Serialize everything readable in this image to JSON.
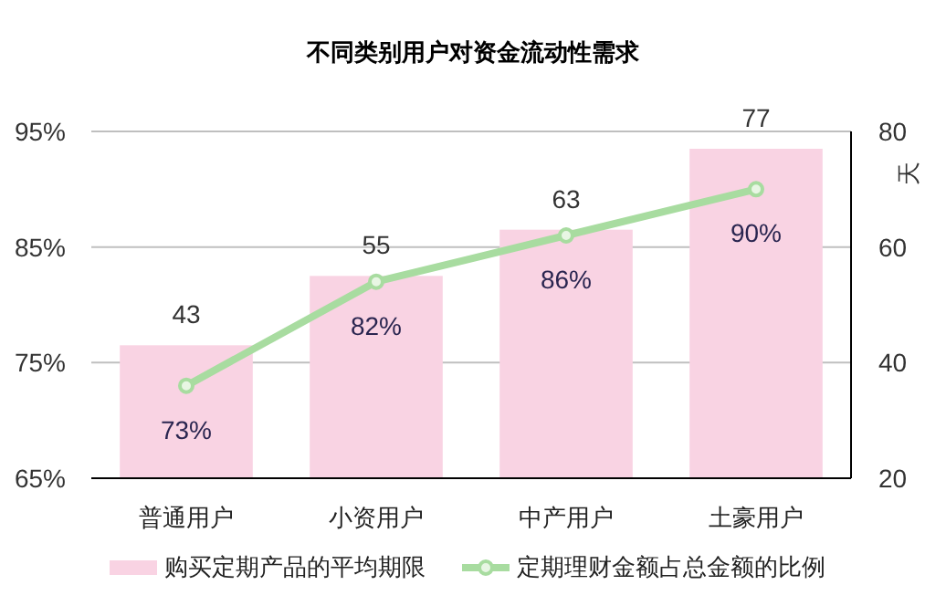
{
  "chart_data": {
    "type": "bar",
    "title": "不同类别用户对资金流动性需求",
    "y2label": "天",
    "categories": [
      "普通用户",
      "小资用户",
      "中产用户",
      "土豪用户"
    ],
    "series": [
      {
        "name": "购买定期产品的平均期限",
        "axis": "y2",
        "color": "#f9d3e3",
        "values": [
          43,
          55,
          63,
          77
        ],
        "value_labels": [
          "43",
          "55",
          "63",
          "77"
        ]
      },
      {
        "name": "定期理财金额占总金额的比例",
        "type": "line",
        "axis": "y",
        "color": "#a8dca0",
        "marker": "circle",
        "values": [
          73,
          82,
          86,
          90
        ],
        "value_labels": [
          "73%",
          "82%",
          "86%",
          "90%"
        ]
      }
    ],
    "ylim": [
      65,
      95
    ],
    "yticks": [
      {
        "value": 65,
        "label": "65%"
      },
      {
        "value": 75,
        "label": "75%"
      },
      {
        "value": 85,
        "label": "85%"
      },
      {
        "value": 95,
        "label": "95%"
      }
    ],
    "y2lim": [
      20,
      80
    ],
    "y2ticks": [
      20,
      40,
      60,
      80
    ],
    "grid": "y",
    "legend": "bottom"
  }
}
